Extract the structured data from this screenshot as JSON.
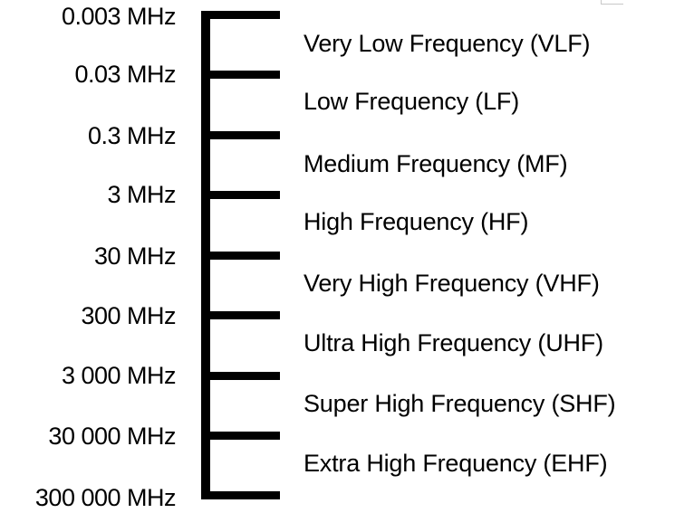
{
  "scale": {
    "frequencies": [
      "0.003 MHz",
      "0.03 MHz",
      "0.3 MHz",
      "3 MHz",
      "30 MHz",
      "300 MHz",
      "3 000 MHz",
      "30 000 MHz",
      "300 000 MHz"
    ],
    "bands": [
      "Very Low Frequency (VLF)",
      "Low Frequency (LF)",
      "Medium Frequency (MF)",
      "High Frequency (HF)",
      "Very High Frequency (VHF)",
      "Ultra High Frequency (UHF)",
      "Super High Frequency (SHF)",
      "Extra High Frequency (EHF)"
    ]
  },
  "colors": {
    "line": "#000000",
    "text": "#000000",
    "background": "#ffffff"
  }
}
